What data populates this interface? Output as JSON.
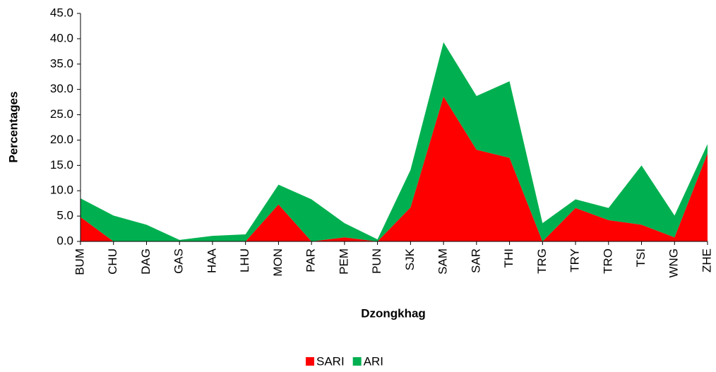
{
  "chart_data": {
    "type": "stacked_area",
    "x_label": "Dzongkhag",
    "y_label": "Percentages",
    "categories": [
      "BUM",
      "CHU",
      "DAG",
      "GAS",
      "HAA",
      "LHU",
      "MON",
      "PAR",
      "PEM",
      "PUN",
      "SJK",
      "SAM",
      "SAR",
      "THI",
      "TRG",
      "TRY",
      "TRO",
      "TSI",
      "WNG",
      "ZHE"
    ],
    "series": [
      {
        "name": "SARI",
        "color": "#ff0000",
        "values": [
          4.8,
          0,
          0,
          0,
          0,
          0,
          7.3,
          0,
          0.8,
          0,
          6.7,
          28.6,
          18.1,
          16.5,
          0,
          6.6,
          4.2,
          3.3,
          0.8,
          17.4
        ]
      },
      {
        "name": "ARI",
        "color": "#00b050",
        "values": [
          3.7,
          5.1,
          3.3,
          0.3,
          1.1,
          1.4,
          3.9,
          8.3,
          2.8,
          0.4,
          7.4,
          10.7,
          10.6,
          15.1,
          3.6,
          1.7,
          2.4,
          11.7,
          4.3,
          1.8
        ]
      }
    ],
    "ylim": [
      0,
      45
    ],
    "yticks": [
      {
        "value": 0,
        "label": "0.0"
      },
      {
        "value": 5,
        "label": "5.0"
      },
      {
        "value": 10,
        "label": "10.0"
      },
      {
        "value": 15,
        "label": "15.0"
      },
      {
        "value": 20,
        "label": "20.0"
      },
      {
        "value": 25,
        "label": "25.0"
      },
      {
        "value": 30,
        "label": "30.0"
      },
      {
        "value": 35,
        "label": "35.0"
      },
      {
        "value": 40,
        "label": "40.0"
      },
      {
        "value": 45,
        "label": "45.0"
      }
    ],
    "legend": "bottom",
    "grid": false
  }
}
